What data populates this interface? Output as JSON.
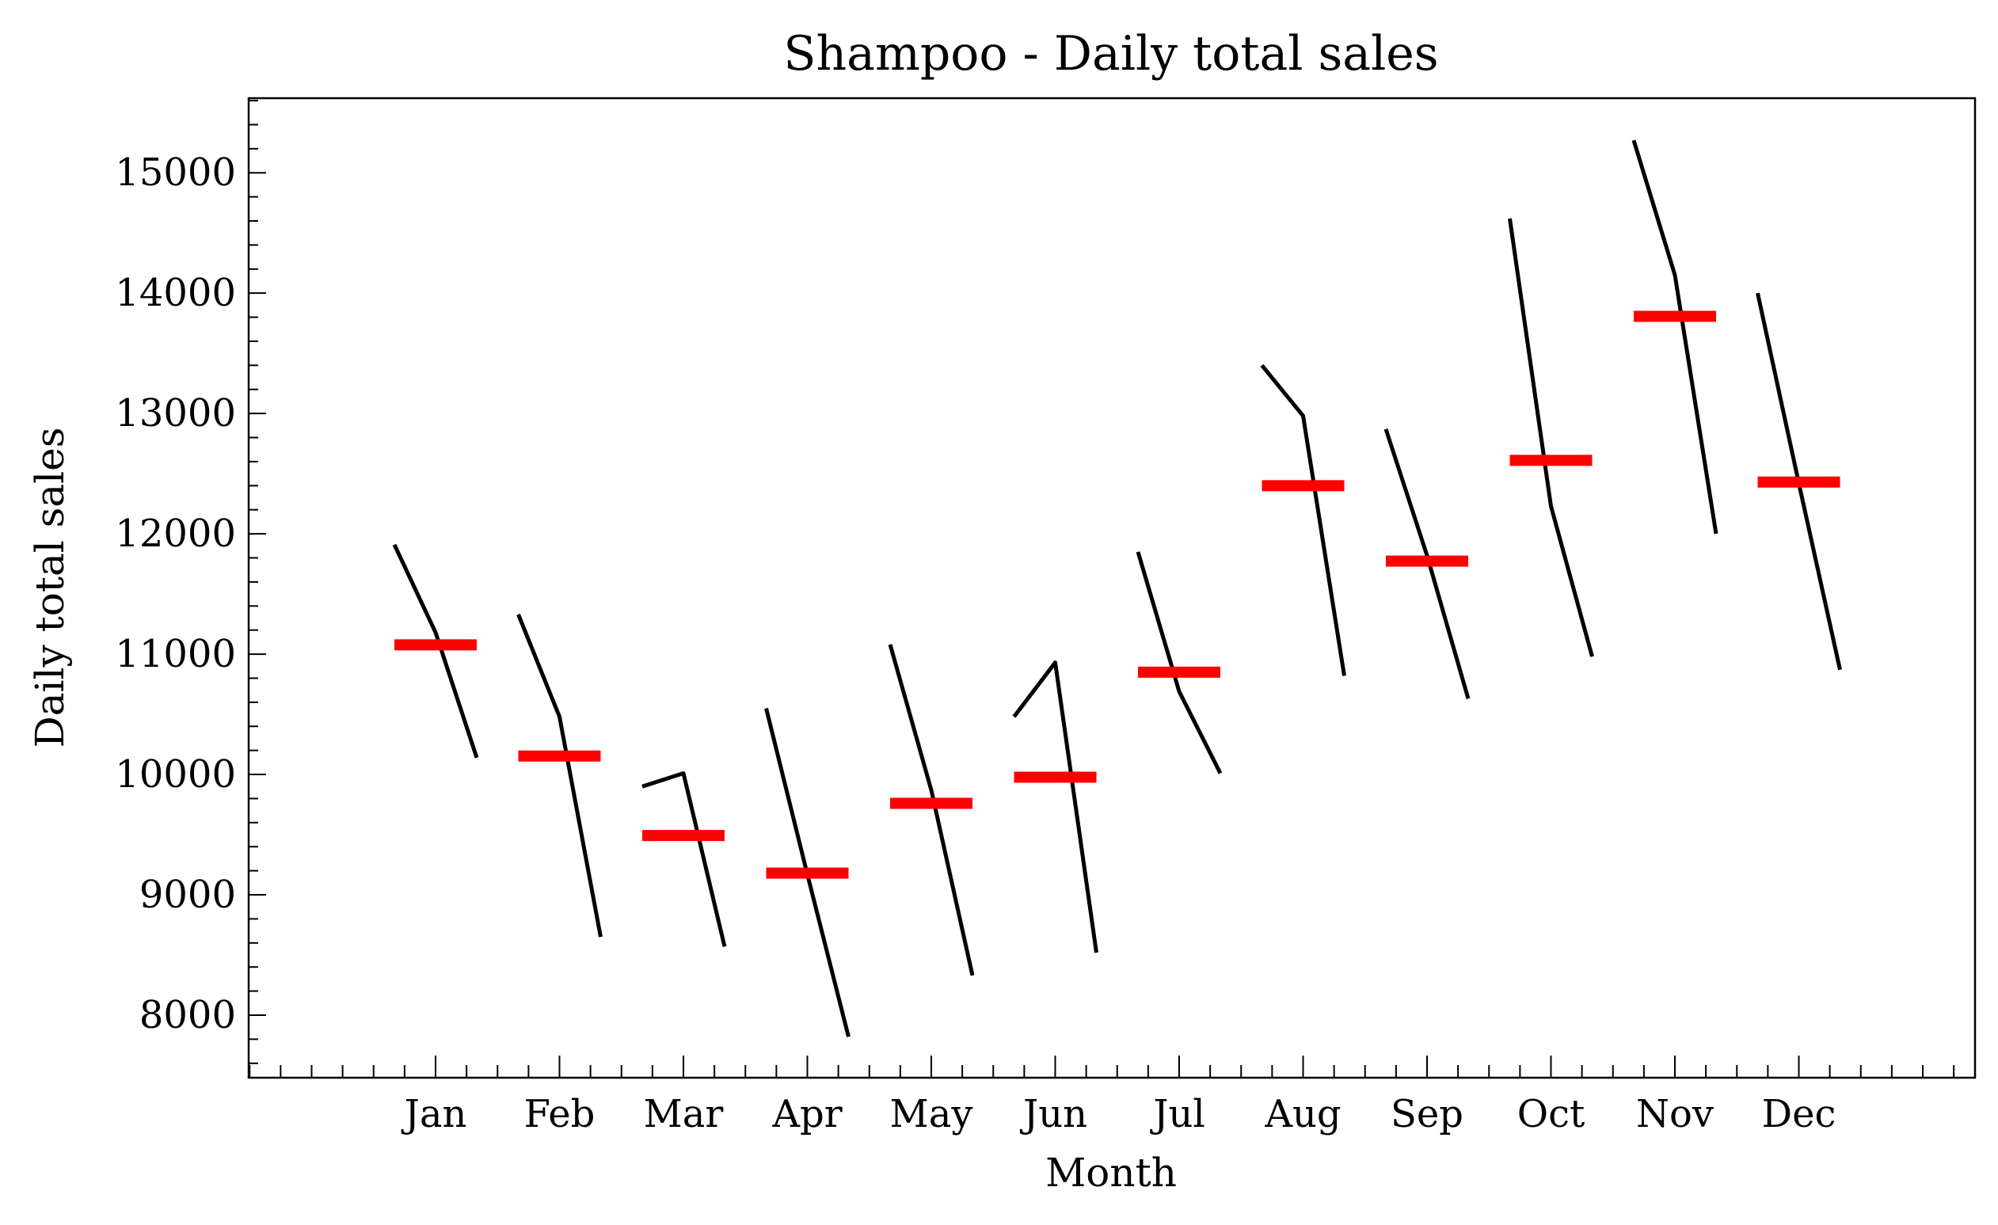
{
  "chart_data": {
    "type": "line",
    "title": "Shampoo - Daily total sales",
    "xlabel": "Month",
    "ylabel": "Daily total sales",
    "categories": [
      "Jan",
      "Feb",
      "Mar",
      "Apr",
      "May",
      "Jun",
      "Jul",
      "Aug",
      "Sep",
      "Oct",
      "Nov",
      "Dec"
    ],
    "yticks": [
      8000,
      9000,
      10000,
      11000,
      12000,
      13000,
      14000,
      15000
    ],
    "ylim": [
      7480,
      15620
    ],
    "grid": false,
    "series": [
      {
        "values": [
          [
            11910,
            11180,
            10140
          ],
          [
            11330,
            10480,
            8650
          ],
          [
            9900,
            10010,
            8570
          ],
          [
            10550,
            9170,
            7820
          ],
          [
            11080,
            9870,
            8330
          ],
          [
            10480,
            10930,
            8520
          ],
          [
            11850,
            10690,
            10010
          ],
          [
            13400,
            12980,
            10820
          ],
          [
            12870,
            11820,
            10630
          ],
          [
            14620,
            12230,
            10980
          ],
          [
            15270,
            14150,
            12000
          ],
          [
            14000,
            12420,
            10870
          ]
        ]
      }
    ],
    "means": [
      11077,
      10153,
      9493,
      9180,
      9760,
      9977,
      10850,
      12400,
      11773,
      12610,
      13807,
      12430
    ],
    "colors": {
      "line": "#000000",
      "mean": "#ff0000"
    }
  }
}
